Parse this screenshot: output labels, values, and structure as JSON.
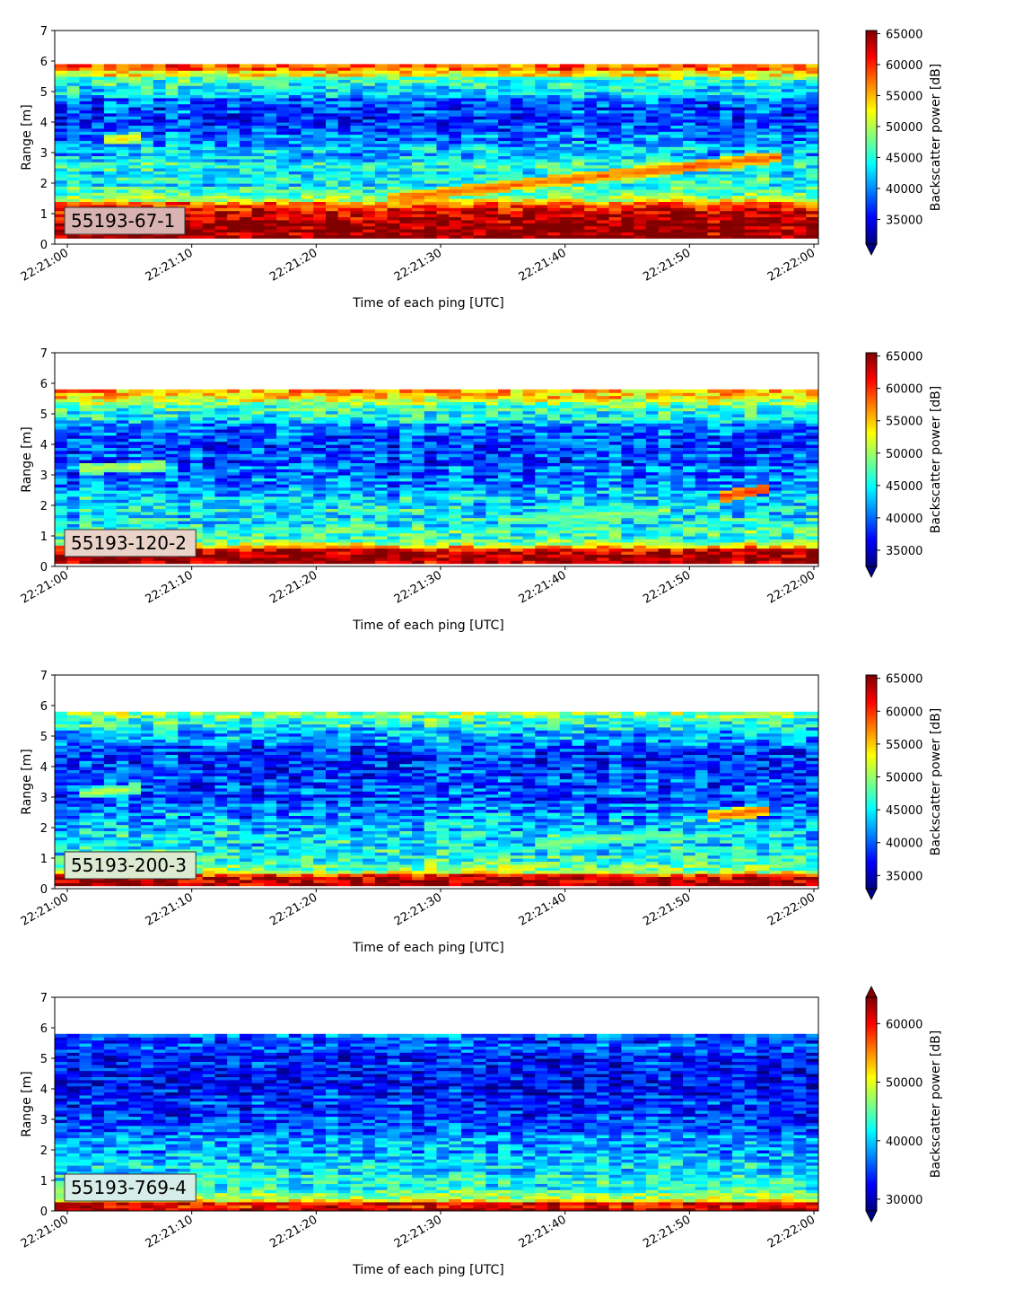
{
  "chart_data": [
    {
      "type": "heatmap",
      "label": "55193-67-1",
      "label_bg": "#d9b2b2",
      "xlabel": "Time of each ping [UTC]",
      "ylabel": "Range [m]",
      "xlim": [
        "22:21:00",
        "22:22:00"
      ],
      "ylim": [
        0,
        7
      ],
      "data_range_m": [
        0.2,
        5.9
      ],
      "yticks": [
        0,
        1,
        2,
        3,
        4,
        5,
        6,
        7
      ],
      "xticks": [
        "22:21:00",
        "22:21:10",
        "22:21:20",
        "22:21:30",
        "22:21:40",
        "22:21:50",
        "22:22:00"
      ],
      "colorbar": {
        "label": "Backscatter power [dB]",
        "min": 31000,
        "max": 65500,
        "ticks": [
          35000,
          40000,
          45000,
          50000,
          55000,
          60000,
          65000
        ],
        "extend": "min",
        "colormap": "jet"
      },
      "profile": [
        {
          "range": 0.2,
          "value": 65000
        },
        {
          "range": 0.6,
          "value": 65000
        },
        {
          "range": 1.0,
          "value": 64000
        },
        {
          "range": 1.3,
          "value": 58000
        },
        {
          "range": 1.6,
          "value": 47000
        },
        {
          "range": 2.0,
          "value": 44000
        },
        {
          "range": 2.5,
          "value": 45000
        },
        {
          "range": 3.0,
          "value": 42000
        },
        {
          "range": 3.5,
          "value": 40000
        },
        {
          "range": 4.0,
          "value": 37000
        },
        {
          "range": 4.5,
          "value": 38000
        },
        {
          "range": 5.0,
          "value": 42000
        },
        {
          "range": 5.4,
          "value": 47000
        },
        {
          "range": 5.7,
          "value": 56000
        },
        {
          "range": 5.9,
          "value": 59000
        }
      ],
      "features": [
        {
          "t0": 0,
          "t1": 60,
          "r0": 1.1,
          "r1": 1.3,
          "value": 55000
        },
        {
          "t0": 26,
          "t1": 58,
          "r0": 1.5,
          "r1": 2.9,
          "value": 58000
        },
        {
          "t0": 3,
          "t1": 6,
          "r0": 3.4,
          "r1": 3.5,
          "value": 53000
        }
      ]
    },
    {
      "type": "heatmap",
      "label": "55193-120-2",
      "label_bg": "#e9d3c9",
      "xlabel": "Time of each ping [UTC]",
      "ylabel": "Range [m]",
      "xlim": [
        "22:21:00",
        "22:22:00"
      ],
      "ylim": [
        0,
        7
      ],
      "data_range_m": [
        0.1,
        5.8
      ],
      "yticks": [
        0,
        1,
        2,
        3,
        4,
        5,
        6,
        7
      ],
      "xticks": [
        "22:21:00",
        "22:21:10",
        "22:21:20",
        "22:21:30",
        "22:21:40",
        "22:21:50",
        "22:22:00"
      ],
      "colorbar": {
        "label": "Backscatter power [dB]",
        "min": 32500,
        "max": 65500,
        "ticks": [
          35000,
          40000,
          45000,
          50000,
          55000,
          60000,
          65000
        ],
        "extend": "min",
        "colormap": "jet"
      },
      "profile": [
        {
          "range": 0.1,
          "value": 65000
        },
        {
          "range": 0.5,
          "value": 63000
        },
        {
          "range": 0.7,
          "value": 52000
        },
        {
          "range": 1.0,
          "value": 46000
        },
        {
          "range": 1.5,
          "value": 45000
        },
        {
          "range": 2.0,
          "value": 44000
        },
        {
          "range": 2.5,
          "value": 42000
        },
        {
          "range": 3.0,
          "value": 41000
        },
        {
          "range": 3.5,
          "value": 39000
        },
        {
          "range": 4.0,
          "value": 38500
        },
        {
          "range": 4.5,
          "value": 40000
        },
        {
          "range": 5.0,
          "value": 45000
        },
        {
          "range": 5.4,
          "value": 50000
        },
        {
          "range": 5.8,
          "value": 57000
        }
      ],
      "features": [
        {
          "t0": 1,
          "t1": 8,
          "r0": 3.2,
          "r1": 3.3,
          "value": 52000
        },
        {
          "t0": 35,
          "t1": 48,
          "r0": 1.5,
          "r1": 1.8,
          "value": 50000
        },
        {
          "t0": 53,
          "t1": 57,
          "r0": 2.3,
          "r1": 2.6,
          "value": 60000
        }
      ]
    },
    {
      "type": "heatmap",
      "label": "55193-200-3",
      "label_bg": "#dcead2",
      "xlabel": "Time of each ping [UTC]",
      "ylabel": "Range [m]",
      "xlim": [
        "22:21:00",
        "22:22:00"
      ],
      "ylim": [
        0,
        7
      ],
      "data_range_m": [
        0.1,
        5.8
      ],
      "yticks": [
        0,
        1,
        2,
        3,
        4,
        5,
        6,
        7
      ],
      "xticks": [
        "22:21:00",
        "22:21:10",
        "22:21:20",
        "22:21:30",
        "22:21:40",
        "22:21:50",
        "22:22:00"
      ],
      "colorbar": {
        "label": "Backscatter power [dB]",
        "min": 33000,
        "max": 65500,
        "ticks": [
          35000,
          40000,
          45000,
          50000,
          55000,
          60000,
          65000
        ],
        "extend": "min",
        "colormap": "jet"
      },
      "profile": [
        {
          "range": 0.1,
          "value": 65000
        },
        {
          "range": 0.4,
          "value": 62000
        },
        {
          "range": 0.6,
          "value": 50000
        },
        {
          "range": 1.0,
          "value": 46000
        },
        {
          "range": 1.5,
          "value": 44000
        },
        {
          "range": 2.0,
          "value": 43000
        },
        {
          "range": 2.5,
          "value": 41000
        },
        {
          "range": 3.0,
          "value": 40000
        },
        {
          "range": 3.5,
          "value": 39000
        },
        {
          "range": 4.0,
          "value": 38500
        },
        {
          "range": 4.5,
          "value": 39000
        },
        {
          "range": 5.0,
          "value": 42000
        },
        {
          "range": 5.5,
          "value": 47000
        },
        {
          "range": 5.8,
          "value": 51000
        }
      ],
      "features": [
        {
          "t0": 1,
          "t1": 6,
          "r0": 3.1,
          "r1": 3.3,
          "value": 51000
        },
        {
          "t0": 38,
          "t1": 50,
          "r0": 1.5,
          "r1": 1.8,
          "value": 50000
        },
        {
          "t0": 52,
          "t1": 57,
          "r0": 2.4,
          "r1": 2.6,
          "value": 58000
        }
      ]
    },
    {
      "type": "heatmap",
      "label": "55193-769-4",
      "label_bg": "#d7eee8",
      "xlabel": "Time of each ping [UTC]",
      "ylabel": "Range [m]",
      "xlim": [
        "22:21:00",
        "22:22:00"
      ],
      "ylim": [
        0,
        7
      ],
      "data_range_m": [
        0.0,
        5.8
      ],
      "yticks": [
        0,
        1,
        2,
        3,
        4,
        5,
        6,
        7
      ],
      "xticks": [
        "22:21:00",
        "22:21:10",
        "22:21:20",
        "22:21:30",
        "22:21:40",
        "22:21:50",
        "22:22:00"
      ],
      "colorbar": {
        "label": "Backscatter power [dB]",
        "min": 28000,
        "max": 64500,
        "ticks": [
          30000,
          40000,
          50000,
          60000
        ],
        "extend": "both",
        "colormap": "jet"
      },
      "profile": [
        {
          "range": 0.0,
          "value": 62000
        },
        {
          "range": 0.25,
          "value": 60000
        },
        {
          "range": 0.35,
          "value": 50000
        },
        {
          "range": 0.7,
          "value": 43000
        },
        {
          "range": 1.2,
          "value": 41000
        },
        {
          "range": 2.0,
          "value": 38000
        },
        {
          "range": 3.0,
          "value": 35000
        },
        {
          "range": 4.0,
          "value": 33000
        },
        {
          "range": 4.5,
          "value": 32000
        },
        {
          "range": 5.0,
          "value": 33500
        },
        {
          "range": 5.8,
          "value": 36000
        }
      ],
      "features": []
    }
  ]
}
